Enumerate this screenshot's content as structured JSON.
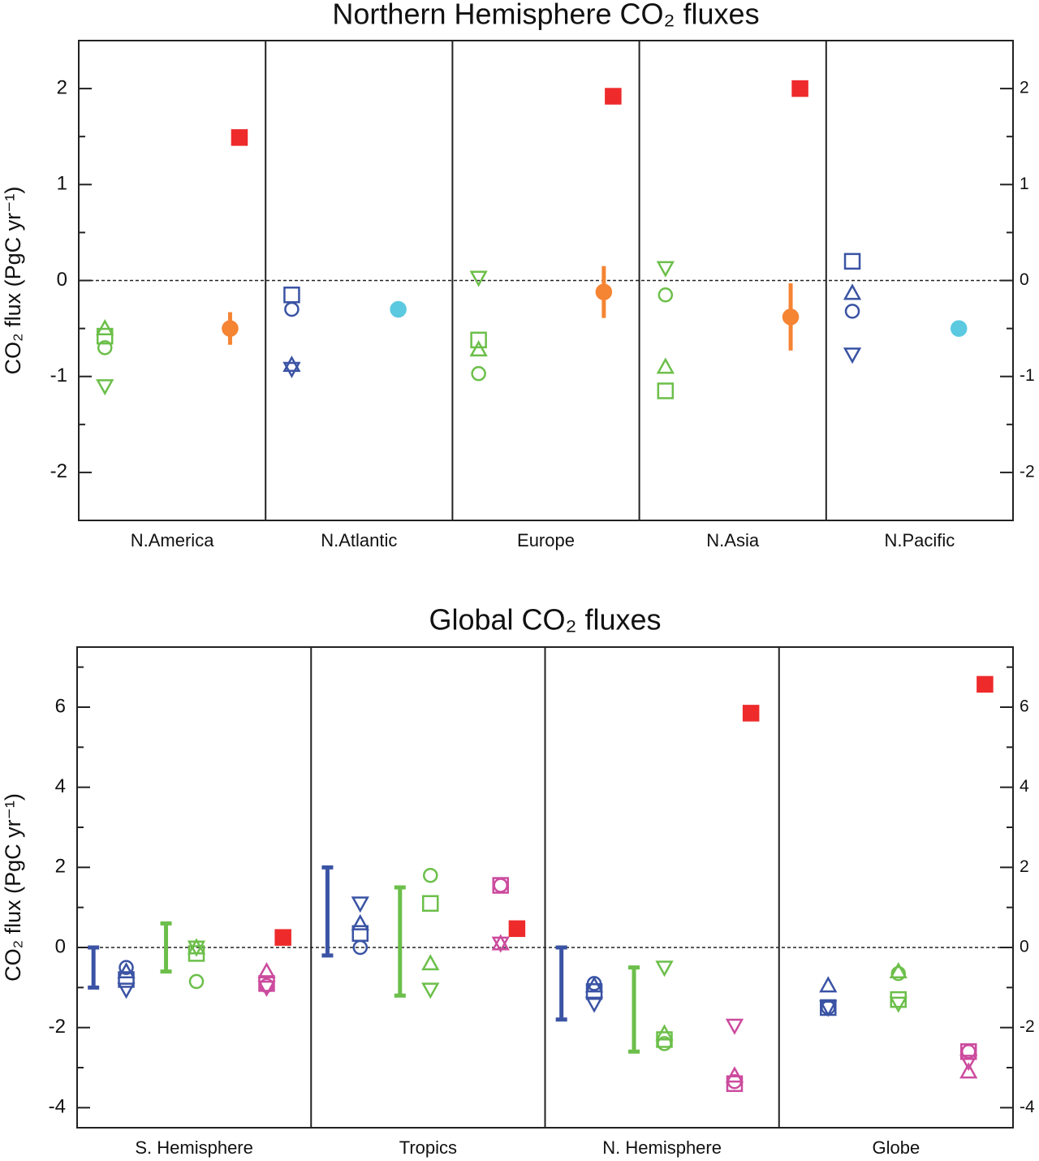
{
  "chart_data": [
    {
      "type": "scatter",
      "title": "Northern Hemisphere CO₂ fluxes",
      "ylabel": "CO₂ flux (PgC yr⁻¹)",
      "categories": [
        "N.America",
        "N.Atlantic",
        "Europe",
        "N.Asia",
        "N.Pacific"
      ],
      "ylim": [
        -2.5,
        2.5
      ],
      "yticks": [
        -2,
        -1,
        0,
        1,
        2
      ],
      "minor_yticks": [
        -2.5,
        -1.5,
        -0.5,
        0.5,
        1.5,
        2.5
      ],
      "series": [
        {
          "color": "#6cbf4a",
          "marker": "triangle-up",
          "filled": false,
          "values": [
            -0.5,
            null,
            -0.72,
            -0.9,
            null
          ]
        },
        {
          "color": "#6cbf4a",
          "marker": "square",
          "filled": false,
          "values": [
            -0.58,
            null,
            -0.62,
            -1.15,
            null
          ]
        },
        {
          "color": "#6cbf4a",
          "marker": "circle",
          "filled": false,
          "values": [
            -0.7,
            null,
            -0.97,
            -0.15,
            null
          ]
        },
        {
          "color": "#6cbf4a",
          "marker": "triangle-down",
          "filled": false,
          "values": [
            -1.1,
            null,
            0.03,
            0.13,
            null
          ]
        },
        {
          "color": "#3a53a4",
          "marker": "square",
          "filled": false,
          "values": [
            null,
            -0.15,
            null,
            null,
            0.2
          ]
        },
        {
          "color": "#3a53a4",
          "marker": "circle",
          "filled": false,
          "values": [
            null,
            -0.3,
            null,
            null,
            -0.32
          ]
        },
        {
          "color": "#3a53a4",
          "marker": "triangle-up",
          "filled": false,
          "values": [
            null,
            -0.88,
            null,
            null,
            -0.13
          ]
        },
        {
          "color": "#3a53a4",
          "marker": "triangle-down",
          "filled": false,
          "values": [
            null,
            -0.92,
            null,
            null,
            -0.77
          ]
        },
        {
          "color": "#f58433",
          "marker": "circle",
          "filled": true,
          "values": [
            -0.5,
            null,
            -0.12,
            -0.38,
            null
          ],
          "errors": [
            0.17,
            null,
            0.27,
            0.35,
            null
          ]
        },
        {
          "color": "#5bc9e0",
          "marker": "circle",
          "filled": true,
          "values": [
            null,
            -0.3,
            null,
            null,
            -0.5
          ],
          "errors": [
            null,
            null,
            null,
            null,
            0.08
          ]
        },
        {
          "color": "#ee2a2b",
          "marker": "square",
          "filled": true,
          "values": [
            1.49,
            null,
            1.92,
            2.0,
            null
          ]
        }
      ]
    },
    {
      "type": "scatter",
      "title": "Global CO₂ fluxes",
      "ylabel": "CO₂ flux (PgC yr⁻¹)",
      "categories": [
        "S. Hemisphere",
        "Tropics",
        "N. Hemisphere",
        "Globe"
      ],
      "ylim": [
        -4.5,
        7.5
      ],
      "yticks": [
        -4,
        -2,
        0,
        2,
        4,
        6
      ],
      "minor_yticks": [
        -3,
        -1,
        1,
        3,
        5,
        7
      ],
      "ranges": [
        {
          "color": "#3a53a4",
          "low": [
            -1.0,
            -0.2,
            -1.8,
            null
          ],
          "high": [
            0,
            2.0,
            0,
            null
          ]
        },
        {
          "color": "#6cbf4a",
          "low": [
            -0.6,
            -1.2,
            -2.6,
            null
          ],
          "high": [
            0.6,
            1.5,
            -0.5,
            null
          ]
        }
      ],
      "series": [
        {
          "color": "#3a53a4",
          "marker": "circle",
          "filled": false,
          "values": [
            -0.5,
            0.0,
            -0.9,
            -1.5
          ]
        },
        {
          "color": "#3a53a4",
          "marker": "triangle-up",
          "filled": false,
          "values": [
            -0.6,
            0.6,
            -0.95,
            -0.95
          ]
        },
        {
          "color": "#3a53a4",
          "marker": "square",
          "filled": false,
          "values": [
            -0.8,
            0.35,
            -1.1,
            -1.5
          ]
        },
        {
          "color": "#3a53a4",
          "marker": "triangle-down",
          "filled": false,
          "values": [
            -1.05,
            1.1,
            -1.4,
            -1.5
          ]
        },
        {
          "color": "#6cbf4a",
          "marker": "circle",
          "filled": false,
          "values": [
            -0.85,
            1.8,
            -2.4,
            -0.65
          ]
        },
        {
          "color": "#6cbf4a",
          "marker": "triangle-up",
          "filled": false,
          "values": [
            0.0,
            -0.4,
            -2.15,
            -0.6
          ]
        },
        {
          "color": "#6cbf4a",
          "marker": "square",
          "filled": false,
          "values": [
            -0.15,
            1.1,
            -2.3,
            -1.3
          ]
        },
        {
          "color": "#6cbf4a",
          "marker": "triangle-down",
          "filled": false,
          "values": [
            0.0,
            -1.05,
            -0.5,
            -1.4
          ]
        },
        {
          "color": "#cc4b9e",
          "marker": "circle",
          "filled": false,
          "values": [
            -0.95,
            1.55,
            -3.35,
            -2.6
          ]
        },
        {
          "color": "#cc4b9e",
          "marker": "triangle-up",
          "filled": false,
          "values": [
            -0.6,
            0.1,
            -3.2,
            -3.1
          ]
        },
        {
          "color": "#cc4b9e",
          "marker": "square",
          "filled": false,
          "values": [
            -0.9,
            1.55,
            -3.4,
            -2.6
          ]
        },
        {
          "color": "#cc4b9e",
          "marker": "triangle-down",
          "filled": false,
          "values": [
            -1.0,
            0.1,
            -1.95,
            -2.85
          ]
        },
        {
          "color": "#ee2a2b",
          "marker": "square",
          "filled": true,
          "values": [
            0.25,
            0.47,
            5.85,
            6.57
          ]
        }
      ]
    }
  ]
}
